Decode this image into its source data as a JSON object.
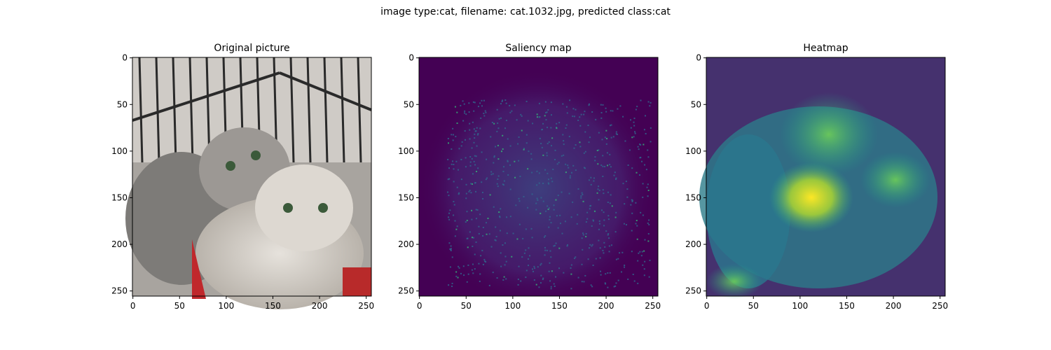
{
  "figure": {
    "title": "image type:cat, filename: cat.1032.jpg, predicted class:cat"
  },
  "chart_data": [
    {
      "type": "image",
      "title": "Original picture",
      "xlim": [
        -0.5,
        255.5
      ],
      "ylim": [
        255.5,
        -0.5
      ],
      "xticks": [
        0,
        50,
        100,
        150,
        200,
        250
      ],
      "yticks": [
        0,
        50,
        100,
        150,
        200,
        250
      ]
    },
    {
      "type": "image",
      "title": "Saliency map",
      "xlim": [
        -0.5,
        255.5
      ],
      "ylim": [
        255.5,
        -0.5
      ],
      "xticks": [
        0,
        50,
        100,
        150,
        200,
        250
      ],
      "yticks": [
        0,
        50,
        100,
        150,
        200,
        250
      ]
    },
    {
      "type": "image",
      "title": "Heatmap",
      "xlim": [
        -0.5,
        255.5
      ],
      "ylim": [
        255.5,
        -0.5
      ],
      "xticks": [
        0,
        50,
        100,
        150,
        200,
        250
      ],
      "yticks": [
        0,
        50,
        100,
        150,
        200,
        250
      ]
    }
  ]
}
